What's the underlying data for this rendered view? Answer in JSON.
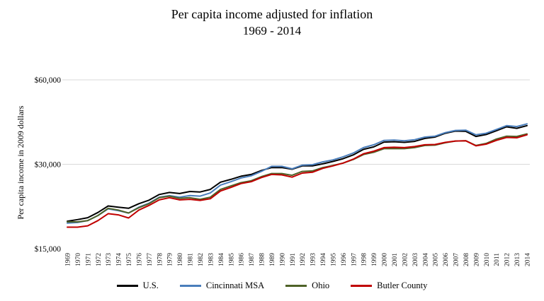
{
  "chart_data": {
    "type": "line",
    "title": "Per capita income adjusted for inflation",
    "subtitle": "1969 - 2014",
    "ylabel": "Per capita income in 2009 dollars",
    "xlabel": "",
    "y_scale": "log2",
    "ylim": [
      15000,
      60000
    ],
    "grid": "horizontal",
    "legend_position": "bottom",
    "y_ticks": [
      {
        "value": 15000,
        "label": "$15,000",
        "gridline": false
      },
      {
        "value": 30000,
        "label": "$30,000",
        "gridline": true
      },
      {
        "value": 60000,
        "label": "$60,000",
        "gridline": true
      }
    ],
    "categories": [
      "1969",
      "1970",
      "1971",
      "1972",
      "1973",
      "1974",
      "1975",
      "1976",
      "1977",
      "1978",
      "1979",
      "1980",
      "1981",
      "1982",
      "1983",
      "1984",
      "1985",
      "1986",
      "1987",
      "1988",
      "1989",
      "1990",
      "1991",
      "1992",
      "1993",
      "1994",
      "1995",
      "1996",
      "1997",
      "1998",
      "1999",
      "2000",
      "2001",
      "2002",
      "2003",
      "2004",
      "2005",
      "2006",
      "2007",
      "2008",
      "2009",
      "2010",
      "2011",
      "2012",
      "2013",
      "2014"
    ],
    "series": [
      {
        "name": "U.S.",
        "color": "#000000",
        "values": [
          18800,
          19050,
          19350,
          20200,
          21300,
          21100,
          20900,
          21700,
          22350,
          23400,
          23800,
          23600,
          24000,
          23900,
          24400,
          25900,
          26500,
          27200,
          27600,
          28500,
          29200,
          29200,
          28800,
          29600,
          29600,
          30100,
          30700,
          31400,
          32400,
          33900,
          34600,
          36000,
          36100,
          35900,
          36200,
          37100,
          37500,
          38700,
          39400,
          39300,
          37700,
          38300,
          39500,
          40800,
          40300,
          41200
        ]
      },
      {
        "name": "Cincinnati MSA",
        "color": "#4a7ebb",
        "values": [
          18500,
          18600,
          18900,
          19700,
          20800,
          20500,
          20100,
          21100,
          21800,
          22900,
          23200,
          22900,
          23200,
          23100,
          23700,
          25300,
          26000,
          26800,
          27300,
          28300,
          29500,
          29500,
          28900,
          29800,
          29900,
          30600,
          31100,
          31900,
          32900,
          34400,
          35200,
          36500,
          36600,
          36400,
          36700,
          37500,
          37800,
          38900,
          39600,
          39700,
          38200,
          38700,
          39900,
          41200,
          40900,
          41800
        ]
      },
      {
        "name": "Ohio",
        "color": "#4f6228",
        "values": [
          18700,
          18700,
          18900,
          19700,
          20900,
          20600,
          20100,
          21000,
          21700,
          22800,
          23100,
          22700,
          22800,
          22500,
          22900,
          24400,
          25100,
          25800,
          26200,
          27100,
          27800,
          27800,
          27400,
          28300,
          28400,
          29200,
          29700,
          30300,
          31200,
          32500,
          33100,
          34100,
          34100,
          34100,
          34400,
          35000,
          35100,
          35800,
          36300,
          36400,
          35000,
          35600,
          36900,
          37800,
          37700,
          38500
        ]
      },
      {
        "name": "Butler County",
        "color": "#c00000",
        "values": [
          17900,
          17900,
          18100,
          18900,
          20000,
          19800,
          19300,
          20600,
          21400,
          22400,
          22800,
          22400,
          22500,
          22300,
          22600,
          24100,
          24800,
          25600,
          26000,
          26900,
          27600,
          27500,
          27000,
          27900,
          28100,
          29000,
          29600,
          30300,
          31300,
          32700,
          33400,
          34400,
          34500,
          34400,
          34700,
          35200,
          35300,
          35900,
          36300,
          36400,
          34900,
          35400,
          36500,
          37400,
          37300,
          38200
        ]
      }
    ]
  }
}
